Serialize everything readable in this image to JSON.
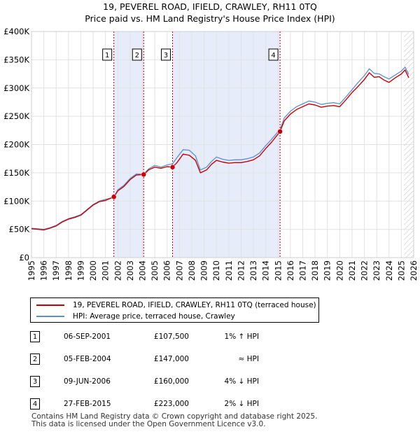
{
  "chart_data": {
    "type": "line",
    "title": "19, PEVEREL ROAD, IFIELD, CRAWLEY, RH11 0TQ",
    "subtitle": "Price paid vs. HM Land Registry's House Price Index (HPI)",
    "xlim": [
      1995,
      2026
    ],
    "ylim": [
      0,
      400000
    ],
    "x_ticks": [
      1995,
      1996,
      1997,
      1998,
      1999,
      2000,
      2001,
      2002,
      2003,
      2004,
      2005,
      2006,
      2007,
      2008,
      2009,
      2010,
      2011,
      2012,
      2013,
      2014,
      2015,
      2016,
      2017,
      2018,
      2019,
      2020,
      2021,
      2022,
      2023,
      2024,
      2025,
      2026
    ],
    "y_ticks": [
      {
        "value": 0,
        "label": "£0"
      },
      {
        "value": 50000,
        "label": "£50K"
      },
      {
        "value": 100000,
        "label": "£100K"
      },
      {
        "value": 150000,
        "label": "£150K"
      },
      {
        "value": 200000,
        "label": "£200K"
      },
      {
        "value": 250000,
        "label": "£250K"
      },
      {
        "value": 300000,
        "label": "£300K"
      },
      {
        "value": 350000,
        "label": "£350K"
      },
      {
        "value": 400000,
        "label": "£400K"
      }
    ],
    "grid": true,
    "shaded_periods": [
      [
        2001.68,
        2004.1
      ],
      [
        2006.44,
        2015.16
      ]
    ],
    "forecast_start": 2025.2,
    "series": [
      {
        "name": "19, PEVEREL ROAD, IFIELD, CRAWLEY, RH11 0TQ (terraced house)",
        "color": "#cc0000",
        "x": [
          1995.0,
          1995.5,
          1996.0,
          1996.5,
          1997.0,
          1997.5,
          1998.0,
          1998.5,
          1999.0,
          1999.5,
          2000.0,
          2000.5,
          2001.0,
          2001.68,
          2002.0,
          2002.5,
          2003.0,
          2003.5,
          2004.1,
          2004.5,
          2005.0,
          2005.5,
          2006.0,
          2006.44,
          2006.8,
          2007.3,
          2007.8,
          2008.3,
          2008.7,
          2009.2,
          2009.6,
          2010.0,
          2010.5,
          2011.0,
          2011.5,
          2012.0,
          2012.5,
          2013.0,
          2013.5,
          2014.0,
          2014.5,
          2015.16,
          2015.5,
          2016.0,
          2016.5,
          2017.0,
          2017.5,
          2018.0,
          2018.5,
          2019.0,
          2019.5,
          2020.0,
          2020.5,
          2021.0,
          2021.5,
          2022.0,
          2022.4,
          2022.8,
          2023.2,
          2023.6,
          2024.0,
          2024.5,
          2025.0,
          2025.3,
          2025.6
        ],
        "values": [
          51000,
          50000,
          49000,
          52000,
          56000,
          63000,
          68000,
          71000,
          75000,
          84000,
          93000,
          99000,
          101000,
          107500,
          118000,
          126000,
          138000,
          146000,
          147000,
          155000,
          160000,
          158000,
          161000,
          160000,
          168000,
          183000,
          181000,
          172000,
          150000,
          155000,
          165000,
          172000,
          169000,
          167000,
          168000,
          168000,
          170000,
          173000,
          180000,
          193000,
          205000,
          223000,
          242000,
          254000,
          262000,
          267000,
          272000,
          270000,
          266000,
          268000,
          269000,
          267000,
          279000,
          292000,
          303000,
          315000,
          327000,
          319000,
          320000,
          314000,
          310000,
          318000,
          325000,
          332000,
          318000
        ]
      },
      {
        "name": "HPI: Average price, terraced house, Crawley",
        "color": "#5b8fd6",
        "x": [
          1995.0,
          1995.5,
          1996.0,
          1996.5,
          1997.0,
          1997.5,
          1998.0,
          1998.5,
          1999.0,
          1999.5,
          2000.0,
          2000.5,
          2001.0,
          2001.68,
          2002.0,
          2002.5,
          2003.0,
          2003.5,
          2004.1,
          2004.5,
          2005.0,
          2005.5,
          2006.0,
          2006.44,
          2006.8,
          2007.3,
          2007.8,
          2008.3,
          2008.7,
          2009.2,
          2009.6,
          2010.0,
          2010.5,
          2011.0,
          2011.5,
          2012.0,
          2012.5,
          2013.0,
          2013.5,
          2014.0,
          2014.5,
          2015.16,
          2015.5,
          2016.0,
          2016.5,
          2017.0,
          2017.5,
          2018.0,
          2018.5,
          2019.0,
          2019.5,
          2020.0,
          2020.5,
          2021.0,
          2021.5,
          2022.0,
          2022.4,
          2022.8,
          2023.2,
          2023.6,
          2024.0,
          2024.5,
          2025.0,
          2025.3,
          2025.6
        ],
        "values": [
          52000,
          51000,
          50000,
          53000,
          57000,
          64000,
          69000,
          72000,
          76000,
          85000,
          94000,
          100000,
          103000,
          106500,
          120000,
          128000,
          140000,
          148000,
          147500,
          157000,
          163000,
          160000,
          164000,
          166000,
          177000,
          191000,
          190000,
          180000,
          155000,
          160000,
          170000,
          178000,
          174000,
          172000,
          173000,
          173000,
          175000,
          178000,
          185000,
          198000,
          210000,
          227000,
          247000,
          259000,
          267000,
          272000,
          277000,
          275000,
          271000,
          273000,
          274000,
          272000,
          284000,
          297000,
          310000,
          322000,
          334000,
          326000,
          325000,
          320000,
          316000,
          323000,
          330000,
          337000,
          324000
        ]
      }
    ],
    "markers": [
      {
        "label": "1",
        "x": 2001.68,
        "y": 107500
      },
      {
        "label": "2",
        "x": 2004.1,
        "y": 147000
      },
      {
        "label": "3",
        "x": 2006.44,
        "y": 160000
      },
      {
        "label": "4",
        "x": 2015.16,
        "y": 223000
      }
    ]
  },
  "legend": {
    "property_label": "19, PEVEREL ROAD, IFIELD, CRAWLEY, RH11 0TQ (terraced house)",
    "hpi_label": "HPI: Average price, terraced house, Crawley",
    "property_color": "#cc0000",
    "hpi_color": "#5b8fd6"
  },
  "sales": [
    {
      "num": "1",
      "date": "06-SEP-2001",
      "price": "£107,500",
      "hpi": "1% ↑ HPI"
    },
    {
      "num": "2",
      "date": "05-FEB-2004",
      "price": "£147,000",
      "hpi": "≈ HPI"
    },
    {
      "num": "3",
      "date": "09-JUN-2006",
      "price": "£160,000",
      "hpi": "4% ↓ HPI"
    },
    {
      "num": "4",
      "date": "27-FEB-2015",
      "price": "£223,000",
      "hpi": "2% ↓ HPI"
    }
  ],
  "footer": {
    "line1": "Contains HM Land Registry data © Crown copyright and database right 2025.",
    "line2": "This data is licensed under the Open Government Licence v3.0."
  }
}
